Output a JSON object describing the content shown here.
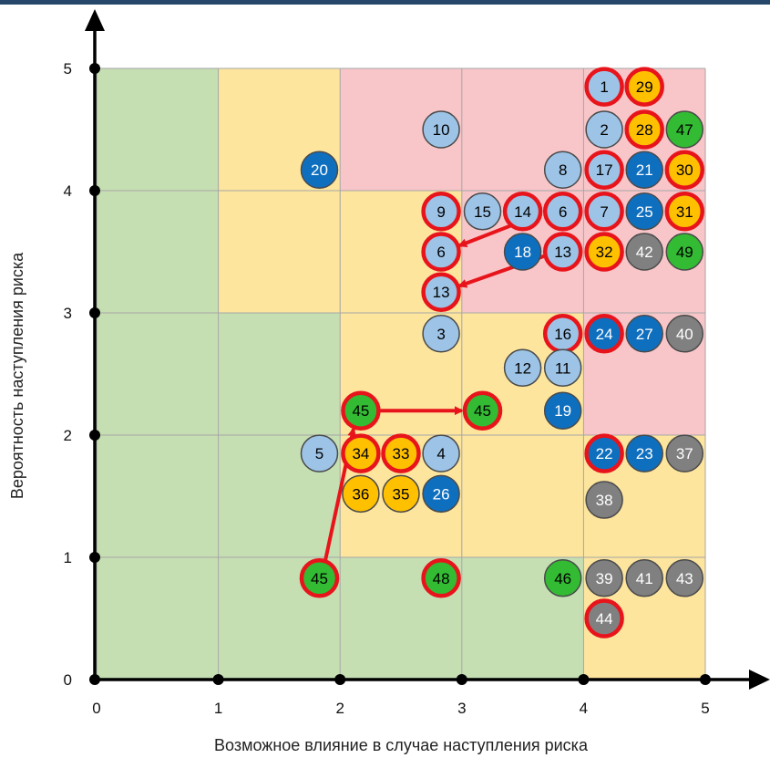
{
  "chart_data": {
    "type": "scatter",
    "xlabel": "Возможное влияние в случае наступления риска",
    "ylabel": "Вероятность наступления риска",
    "xlim": [
      0,
      5
    ],
    "ylim": [
      0,
      5
    ],
    "x_ticks": [
      "0",
      "1",
      "2",
      "3",
      "4",
      "5"
    ],
    "y_ticks": [
      "0",
      "1",
      "2",
      "3",
      "4",
      "5"
    ],
    "grid": true,
    "zone_colors": {
      "low": "#c5dfb3",
      "medium": "#fde59e",
      "high": "#f8c6c9"
    },
    "zones": [
      {
        "level": "low",
        "x0": 0,
        "x1": 1,
        "y0": 0,
        "y1": 5
      },
      {
        "level": "low",
        "x0": 1,
        "x1": 2,
        "y0": 0,
        "y1": 3
      },
      {
        "level": "low",
        "x0": 2,
        "x1": 3,
        "y0": 0,
        "y1": 1
      },
      {
        "level": "low",
        "x0": 3,
        "x1": 4,
        "y0": 0,
        "y1": 1
      },
      {
        "level": "medium",
        "x0": 1,
        "x1": 2,
        "y0": 3,
        "y1": 5
      },
      {
        "level": "medium",
        "x0": 2,
        "x1": 3,
        "y0": 1,
        "y1": 4
      },
      {
        "level": "medium",
        "x0": 3,
        "x1": 4,
        "y0": 1,
        "y1": 3
      },
      {
        "level": "medium",
        "x0": 4,
        "x1": 5,
        "y0": 0,
        "y1": 2
      },
      {
        "level": "high",
        "x0": 2,
        "x1": 3,
        "y0": 4,
        "y1": 5
      },
      {
        "level": "high",
        "x0": 3,
        "x1": 4,
        "y0": 3,
        "y1": 5
      },
      {
        "level": "high",
        "x0": 4,
        "x1": 5,
        "y0": 2,
        "y1": 5
      }
    ],
    "category_colors": {
      "light-blue": "#9dc3e6",
      "blue": "#0f6fbf",
      "orange": "#ffc000",
      "green": "#33bb33",
      "gray": "#808080",
      "highlight-ring": "#e8141b"
    },
    "points": [
      {
        "label": "1",
        "x": 4.17,
        "y": 4.85,
        "color": "light-blue",
        "highlight": true
      },
      {
        "label": "29",
        "x": 4.5,
        "y": 4.85,
        "color": "orange",
        "highlight": true
      },
      {
        "label": "10",
        "x": 2.83,
        "y": 4.5,
        "color": "light-blue",
        "highlight": false
      },
      {
        "label": "2",
        "x": 4.17,
        "y": 4.5,
        "color": "light-blue",
        "highlight": false
      },
      {
        "label": "28",
        "x": 4.5,
        "y": 4.5,
        "color": "orange",
        "highlight": true
      },
      {
        "label": "47",
        "x": 4.83,
        "y": 4.5,
        "color": "green",
        "highlight": false
      },
      {
        "label": "20",
        "x": 1.83,
        "y": 4.17,
        "color": "blue",
        "highlight": false
      },
      {
        "label": "8",
        "x": 3.83,
        "y": 4.17,
        "color": "light-blue",
        "highlight": false
      },
      {
        "label": "17",
        "x": 4.17,
        "y": 4.17,
        "color": "light-blue",
        "highlight": true
      },
      {
        "label": "21",
        "x": 4.5,
        "y": 4.17,
        "color": "blue",
        "highlight": false
      },
      {
        "label": "30",
        "x": 4.83,
        "y": 4.17,
        "color": "orange",
        "highlight": true
      },
      {
        "label": "9",
        "x": 2.83,
        "y": 3.83,
        "color": "light-blue",
        "highlight": true
      },
      {
        "label": "15",
        "x": 3.17,
        "y": 3.83,
        "color": "light-blue",
        "highlight": false
      },
      {
        "label": "14",
        "x": 3.5,
        "y": 3.83,
        "color": "light-blue",
        "highlight": true
      },
      {
        "label": "6",
        "x": 3.83,
        "y": 3.83,
        "color": "light-blue",
        "highlight": true
      },
      {
        "label": "7",
        "x": 4.17,
        "y": 3.83,
        "color": "light-blue",
        "highlight": true
      },
      {
        "label": "25",
        "x": 4.5,
        "y": 3.83,
        "color": "blue",
        "highlight": false
      },
      {
        "label": "31",
        "x": 4.83,
        "y": 3.83,
        "color": "orange",
        "highlight": true
      },
      {
        "label": "6",
        "x": 2.83,
        "y": 3.5,
        "color": "light-blue",
        "highlight": true
      },
      {
        "label": "18",
        "x": 3.5,
        "y": 3.5,
        "color": "blue",
        "highlight": false
      },
      {
        "label": "13",
        "x": 3.83,
        "y": 3.5,
        "color": "light-blue",
        "highlight": true
      },
      {
        "label": "32",
        "x": 4.17,
        "y": 3.5,
        "color": "orange",
        "highlight": true
      },
      {
        "label": "42",
        "x": 4.5,
        "y": 3.5,
        "color": "gray",
        "highlight": false
      },
      {
        "label": "49",
        "x": 4.83,
        "y": 3.5,
        "color": "green",
        "highlight": false
      },
      {
        "label": "13",
        "x": 2.83,
        "y": 3.17,
        "color": "light-blue",
        "highlight": true
      },
      {
        "label": "3",
        "x": 2.83,
        "y": 2.83,
        "color": "light-blue",
        "highlight": false
      },
      {
        "label": "16",
        "x": 3.83,
        "y": 2.83,
        "color": "light-blue",
        "highlight": true
      },
      {
        "label": "24",
        "x": 4.17,
        "y": 2.83,
        "color": "blue",
        "highlight": true
      },
      {
        "label": "27",
        "x": 4.5,
        "y": 2.83,
        "color": "blue",
        "highlight": false
      },
      {
        "label": "40",
        "x": 4.83,
        "y": 2.83,
        "color": "gray",
        "highlight": false
      },
      {
        "label": "12",
        "x": 3.5,
        "y": 2.55,
        "color": "light-blue",
        "highlight": false
      },
      {
        "label": "11",
        "x": 3.83,
        "y": 2.55,
        "color": "light-blue",
        "highlight": false
      },
      {
        "label": "45",
        "x": 2.17,
        "y": 2.2,
        "color": "green",
        "highlight": true
      },
      {
        "label": "45",
        "x": 3.17,
        "y": 2.2,
        "color": "green",
        "highlight": true
      },
      {
        "label": "19",
        "x": 3.83,
        "y": 2.2,
        "color": "blue",
        "highlight": false
      },
      {
        "label": "5",
        "x": 1.83,
        "y": 1.85,
        "color": "light-blue",
        "highlight": false
      },
      {
        "label": "34",
        "x": 2.17,
        "y": 1.85,
        "color": "orange",
        "highlight": true
      },
      {
        "label": "33",
        "x": 2.5,
        "y": 1.85,
        "color": "orange",
        "highlight": true
      },
      {
        "label": "4",
        "x": 2.83,
        "y": 1.85,
        "color": "light-blue",
        "highlight": false
      },
      {
        "label": "22",
        "x": 4.17,
        "y": 1.85,
        "color": "blue",
        "highlight": true
      },
      {
        "label": "23",
        "x": 4.5,
        "y": 1.85,
        "color": "blue",
        "highlight": false
      },
      {
        "label": "37",
        "x": 4.83,
        "y": 1.85,
        "color": "gray",
        "highlight": false
      },
      {
        "label": "36",
        "x": 2.17,
        "y": 1.52,
        "color": "orange",
        "highlight": false
      },
      {
        "label": "35",
        "x": 2.5,
        "y": 1.52,
        "color": "orange",
        "highlight": false
      },
      {
        "label": "26",
        "x": 2.83,
        "y": 1.52,
        "color": "blue",
        "highlight": false
      },
      {
        "label": "38",
        "x": 4.17,
        "y": 1.47,
        "color": "gray",
        "highlight": false
      },
      {
        "label": "45",
        "x": 1.83,
        "y": 0.83,
        "color": "green",
        "highlight": true
      },
      {
        "label": "48",
        "x": 2.83,
        "y": 0.83,
        "color": "green",
        "highlight": true
      },
      {
        "label": "46",
        "x": 3.83,
        "y": 0.83,
        "color": "green",
        "highlight": false
      },
      {
        "label": "39",
        "x": 4.17,
        "y": 0.83,
        "color": "gray",
        "highlight": false
      },
      {
        "label": "41",
        "x": 4.5,
        "y": 0.83,
        "color": "gray",
        "highlight": false
      },
      {
        "label": "43",
        "x": 4.83,
        "y": 0.83,
        "color": "gray",
        "highlight": false
      },
      {
        "label": "44",
        "x": 4.17,
        "y": 0.5,
        "color": "gray",
        "highlight": true
      }
    ],
    "arrows": [
      {
        "from": [
          3.6,
          3.79
        ],
        "to": [
          2.98,
          3.55
        ]
      },
      {
        "from": [
          3.72,
          3.48
        ],
        "to": [
          2.98,
          3.22
        ]
      },
      {
        "from": [
          1.88,
          0.98
        ],
        "to": [
          2.11,
          2.05
        ]
      },
      {
        "from": [
          2.33,
          2.2
        ],
        "to": [
          3.0,
          2.2
        ]
      }
    ]
  }
}
